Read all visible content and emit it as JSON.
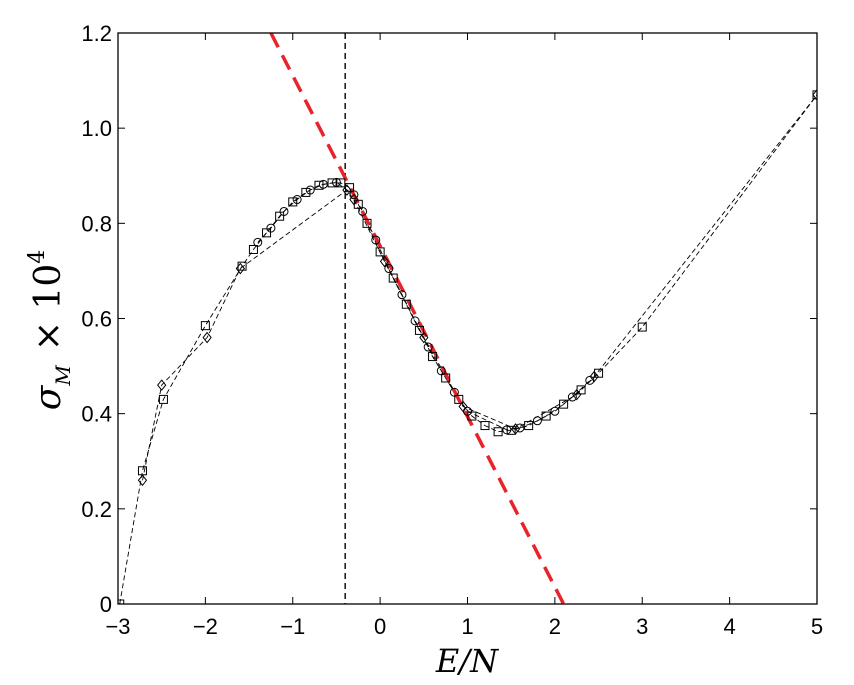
{
  "chart_data": {
    "type": "scatter",
    "title": "",
    "xlabel": "E/N",
    "ylabel_symbol": "σ",
    "ylabel_subscript": "M",
    "ylabel_factor": "× 10",
    "ylabel_exponent": "4",
    "xlim": [
      -3,
      5
    ],
    "ylim": [
      0,
      1.2
    ],
    "xticks": [
      -3,
      -2,
      -1,
      0,
      1,
      2,
      3,
      4,
      5
    ],
    "xtick_labels": [
      "−3",
      "−2",
      "−1",
      "0",
      "1",
      "2",
      "3",
      "4",
      "5"
    ],
    "yticks": [
      0,
      0.2,
      0.4,
      0.6,
      0.8,
      1.0,
      1.2
    ],
    "ytick_labels": [
      "0",
      "0.2",
      "0.4",
      "0.6",
      "0.8",
      "1.0",
      "1.2"
    ],
    "grid": false,
    "vertical_line_x": -0.4,
    "linear_fit": {
      "points": [
        [
          -1.25,
          1.2
        ],
        [
          2.1,
          0.0
        ]
      ],
      "color": "#e8232b",
      "style": "dashed"
    },
    "series": [
      {
        "marker": "square",
        "points": [
          [
            -2.98,
            0.0
          ],
          [
            -2.72,
            0.28
          ],
          [
            -2.48,
            0.43
          ],
          [
            -2.0,
            0.585
          ],
          [
            -1.58,
            0.71
          ],
          [
            -1.45,
            0.745
          ],
          [
            -1.3,
            0.78
          ],
          [
            -1.15,
            0.815
          ],
          [
            -1.0,
            0.845
          ],
          [
            -0.85,
            0.865
          ],
          [
            -0.7,
            0.88
          ],
          [
            -0.55,
            0.885
          ],
          [
            -0.45,
            0.885
          ],
          [
            -0.35,
            0.875
          ],
          [
            -0.25,
            0.84
          ],
          [
            -0.15,
            0.8
          ],
          [
            0.0,
            0.74
          ],
          [
            0.15,
            0.685
          ],
          [
            0.3,
            0.63
          ],
          [
            0.45,
            0.575
          ],
          [
            0.6,
            0.52
          ],
          [
            0.75,
            0.475
          ],
          [
            0.9,
            0.43
          ],
          [
            1.05,
            0.395
          ],
          [
            1.2,
            0.375
          ],
          [
            1.35,
            0.362
          ],
          [
            1.5,
            0.365
          ],
          [
            1.7,
            0.375
          ],
          [
            1.9,
            0.395
          ],
          [
            2.1,
            0.42
          ],
          [
            2.3,
            0.45
          ],
          [
            2.5,
            0.485
          ],
          [
            3.0,
            0.582
          ],
          [
            5.0,
            1.07
          ]
        ]
      },
      {
        "marker": "circle",
        "points": [
          [
            -1.4,
            0.76
          ],
          [
            -1.25,
            0.79
          ],
          [
            -1.1,
            0.825
          ],
          [
            -0.95,
            0.85
          ],
          [
            -0.8,
            0.87
          ],
          [
            -0.65,
            0.882
          ],
          [
            -0.5,
            0.886
          ],
          [
            -0.3,
            0.86
          ],
          [
            -0.2,
            0.825
          ],
          [
            -0.05,
            0.765
          ],
          [
            0.1,
            0.705
          ],
          [
            0.25,
            0.65
          ],
          [
            0.4,
            0.595
          ],
          [
            0.55,
            0.54
          ],
          [
            0.7,
            0.49
          ],
          [
            0.85,
            0.445
          ],
          [
            1.0,
            0.405
          ],
          [
            1.45,
            0.366
          ],
          [
            1.6,
            0.37
          ],
          [
            1.8,
            0.385
          ],
          [
            2.0,
            0.405
          ],
          [
            2.2,
            0.435
          ],
          [
            2.4,
            0.47
          ]
        ]
      },
      {
        "marker": "diamond",
        "points": [
          [
            -2.72,
            0.26
          ],
          [
            -2.5,
            0.46
          ],
          [
            -1.98,
            0.56
          ],
          [
            -1.6,
            0.705
          ],
          [
            -0.38,
            0.87
          ],
          [
            -0.3,
            0.85
          ],
          [
            0.05,
            0.72
          ],
          [
            0.5,
            0.56
          ],
          [
            0.95,
            0.415
          ],
          [
            1.55,
            0.368
          ],
          [
            2.25,
            0.44
          ],
          [
            2.45,
            0.478
          ],
          [
            5.0,
            1.07
          ]
        ]
      }
    ]
  }
}
